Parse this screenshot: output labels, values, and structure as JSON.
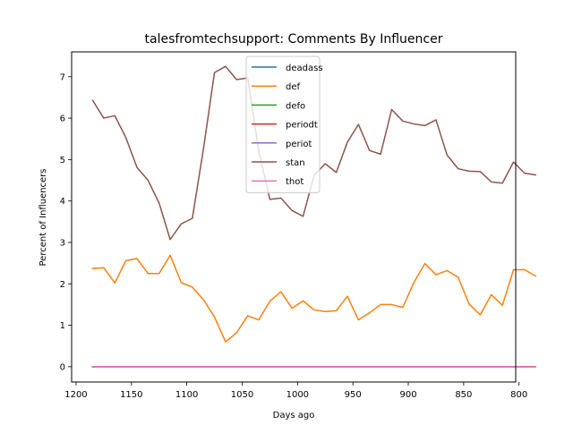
{
  "chart_data": {
    "type": "line",
    "title": "talesfromtechsupport: Comments By Influencer",
    "xlabel": "Days ago",
    "ylabel": "Percent of Influencers",
    "xlim": [
      1204,
      803
    ],
    "ylim": [
      -0.37,
      7.6
    ],
    "x_inverted": true,
    "xticks": [
      1200,
      1150,
      1100,
      1050,
      1000,
      950,
      900,
      850,
      800
    ],
    "xtick_labels": [
      "1200",
      "1150",
      "1100",
      "1050",
      "1000",
      "950",
      "900",
      "850",
      "800"
    ],
    "yticks": [
      0,
      1,
      2,
      3,
      4,
      5,
      6,
      7
    ],
    "ytick_labels": [
      "0",
      "1",
      "2",
      "3",
      "4",
      "5",
      "6",
      "7"
    ],
    "grid": false,
    "legend_position": "upper-center",
    "x": [
      1185,
      1175,
      1165,
      1155,
      1145,
      1135,
      1125,
      1115,
      1105,
      1095,
      1085,
      1075,
      1065,
      1055,
      1045,
      1035,
      1025,
      1015,
      1005,
      995,
      985,
      975,
      965,
      955,
      945,
      935,
      925,
      915,
      905,
      895,
      885,
      875,
      865,
      855,
      845,
      835,
      825,
      815,
      805,
      795,
      785
    ],
    "series": [
      {
        "name": "deadass",
        "color": "#1f77b4",
        "values": [
          0,
          0,
          0,
          0,
          0,
          0,
          0,
          0,
          0,
          0,
          0,
          0,
          0,
          0,
          0,
          0,
          0,
          0,
          0,
          0,
          0,
          0,
          0,
          0,
          0,
          0,
          0,
          0,
          0,
          0,
          0,
          0,
          0,
          0,
          0,
          0,
          0,
          0,
          0,
          0,
          0
        ]
      },
      {
        "name": "def",
        "color": "#ff7f0e",
        "values": [
          2.37,
          2.39,
          2.02,
          2.56,
          2.61,
          2.25,
          2.25,
          2.69,
          2.03,
          1.92,
          1.62,
          1.2,
          0.6,
          0.82,
          1.23,
          1.13,
          1.58,
          1.81,
          1.41,
          1.59,
          1.37,
          1.33,
          1.35,
          1.7,
          1.13,
          1.3,
          1.5,
          1.5,
          1.43,
          2.03,
          2.49,
          2.22,
          2.32,
          2.16,
          1.51,
          1.25,
          1.74,
          1.48,
          2.34,
          2.34,
          2.19
        ]
      },
      {
        "name": "defo",
        "color": "#2ca02c",
        "values": [
          0,
          0,
          0,
          0,
          0,
          0,
          0,
          0,
          0,
          0,
          0,
          0,
          0,
          0,
          0,
          0,
          0,
          0,
          0,
          0,
          0,
          0,
          0,
          0,
          0,
          0,
          0,
          0,
          0,
          0,
          0,
          0,
          0,
          0,
          0,
          0,
          0,
          0,
          0,
          0,
          0
        ]
      },
      {
        "name": "periodt",
        "color": "#d62728",
        "values": [
          0,
          0,
          0,
          0,
          0,
          0,
          0,
          0,
          0,
          0,
          0,
          0,
          0,
          0,
          0,
          0,
          0,
          0,
          0,
          0,
          0,
          0,
          0,
          0,
          0,
          0,
          0,
          0,
          0,
          0,
          0,
          0,
          0,
          0,
          0,
          0,
          0,
          0,
          0,
          0,
          0
        ]
      },
      {
        "name": "periot",
        "color": "#9467bd",
        "values": [
          0,
          0,
          0,
          0,
          0,
          0,
          0,
          0,
          0,
          0,
          0,
          0,
          0,
          0,
          0,
          0,
          0,
          0,
          0,
          0,
          0,
          0,
          0,
          0,
          0,
          0,
          0,
          0,
          0,
          0,
          0,
          0,
          0,
          0,
          0,
          0,
          0,
          0,
          0,
          0,
          0
        ]
      },
      {
        "name": "stan",
        "color": "#8c564b",
        "values": [
          6.43,
          6.0,
          6.06,
          5.53,
          4.81,
          4.5,
          3.95,
          3.07,
          3.45,
          3.58,
          5.25,
          7.1,
          7.25,
          6.93,
          6.97,
          5.2,
          4.04,
          4.07,
          3.77,
          3.63,
          4.62,
          4.9,
          4.69,
          5.42,
          5.85,
          5.22,
          5.13,
          6.21,
          5.93,
          5.86,
          5.82,
          5.96,
          5.11,
          4.78,
          4.72,
          4.71,
          4.46,
          4.43,
          4.94,
          4.67,
          4.63
        ]
      },
      {
        "name": "thot",
        "color": "#e377c2",
        "values": [
          0,
          0,
          0,
          0,
          0,
          0,
          0,
          0,
          0,
          0,
          0,
          0,
          0,
          0,
          0,
          0,
          0,
          0,
          0,
          0,
          0,
          0,
          0,
          0,
          0,
          0,
          0,
          0,
          0,
          0,
          0,
          0,
          0,
          0,
          0,
          0,
          0,
          0,
          0,
          0,
          0
        ]
      }
    ]
  }
}
